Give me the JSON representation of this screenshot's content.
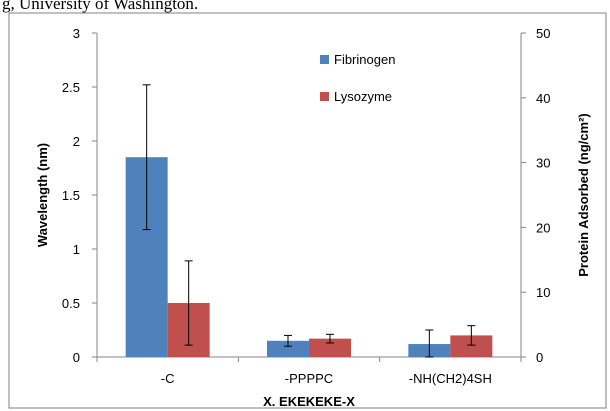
{
  "header": {
    "text": "g, University of Washington."
  },
  "chart_data": {
    "type": "bar",
    "title": "",
    "xlabel": "X. EKEKEKE-X",
    "ylabel": "Wavelength (nm)",
    "y2label": "Protein Adsorbed (ng/cm²)",
    "ylim": [
      0,
      3
    ],
    "y2lim": [
      0,
      50
    ],
    "yticks": [
      "0",
      "0.5",
      "1",
      "1.5",
      "2",
      "2.5",
      "3"
    ],
    "y2ticks": [
      "0",
      "10",
      "20",
      "30",
      "40",
      "50"
    ],
    "categories": [
      "-C",
      "-PPPPC",
      "-NH(CH2)4SH"
    ],
    "series": [
      {
        "name": "Fibrinogen",
        "color": "#4f81bd",
        "values": [
          1.85,
          0.15,
          0.12
        ],
        "errors": [
          0.67,
          0.05,
          0.13
        ]
      },
      {
        "name": "Lysozyme",
        "color": "#c0504d",
        "values": [
          0.5,
          0.17,
          0.2
        ],
        "errors": [
          0.39,
          0.04,
          0.09
        ]
      }
    ],
    "grid": false,
    "legend": "top-right"
  }
}
